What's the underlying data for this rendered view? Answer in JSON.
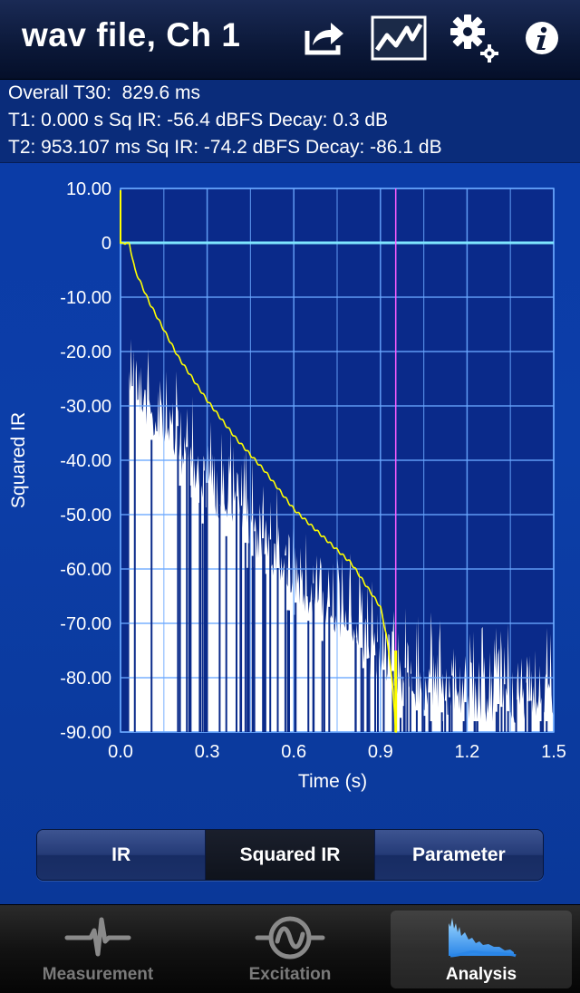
{
  "navbar": {
    "title": "wav file, Ch 1",
    "icons": [
      "share-icon",
      "chart-toggle-icon",
      "gear-icon",
      "info-icon"
    ]
  },
  "info": {
    "line1": "Overall T30:  829.6 ms",
    "line2": "T1: 0.000 s Sq IR: -56.4 dBFS Decay: 0.3 dB",
    "line3": "T2: 953.107 ms Sq IR: -74.2 dBFS Decay: -86.1 dB"
  },
  "chart_data": {
    "type": "line",
    "xlabel": "Time (s)",
    "ylabel": "Squared IR",
    "xlim": [
      0.0,
      1.5
    ],
    "ylim": [
      -90,
      10
    ],
    "x_ticks": [
      "0.0",
      "0.3",
      "0.6",
      "0.9",
      "1.2",
      "1.5"
    ],
    "y_ticks": [
      "10.00",
      "0",
      "-10.00",
      "-20.00",
      "-30.00",
      "-40.00",
      "-50.00",
      "-60.00",
      "-70.00",
      "-80.00",
      "-90.00"
    ],
    "grid": true,
    "markers": {
      "t1": 0.0,
      "t2": 0.953
    },
    "reference_level": 0,
    "series": [
      {
        "kind": "squared-ir",
        "color": "#ffffff",
        "x": [
          0.03,
          0.05,
          0.08,
          0.1,
          0.15,
          0.2,
          0.3,
          0.4,
          0.5,
          0.6,
          0.7,
          0.8,
          0.9,
          1.0,
          1.1,
          1.2,
          1.3,
          1.4,
          1.5
        ],
        "y": [
          -11,
          -13,
          -17,
          -19,
          -22,
          -26,
          -33,
          -38,
          -44,
          -50,
          -55,
          -60,
          -66,
          -70,
          -71,
          -72,
          -73,
          -72,
          -73
        ]
      },
      {
        "kind": "decay-curve",
        "color": "#ffff00",
        "x": [
          0.0,
          0.03,
          0.05,
          0.1,
          0.2,
          0.3,
          0.4,
          0.5,
          0.6,
          0.7,
          0.8,
          0.9,
          0.92,
          0.94,
          0.953,
          0.955
        ],
        "y": [
          0,
          0,
          -5,
          -11,
          -21,
          -29,
          -36,
          -42,
          -49,
          -54,
          -59,
          -67,
          -72,
          -80,
          -90,
          -90
        ]
      }
    ]
  },
  "segments": {
    "ir": "IR",
    "squared_ir": "Squared IR",
    "parameter": "Parameter",
    "selected": "squared_ir"
  },
  "tabs": {
    "measurement": "Measurement",
    "excitation": "Excitation",
    "analysis": "Analysis",
    "selected": "analysis"
  },
  "colors": {
    "plot_background": "#0a2a8a",
    "grid": "#6aa8ff",
    "reference_line": "#7fe6ff",
    "t2_marker": "#ff5cff",
    "decay_curve": "#ffff00"
  }
}
